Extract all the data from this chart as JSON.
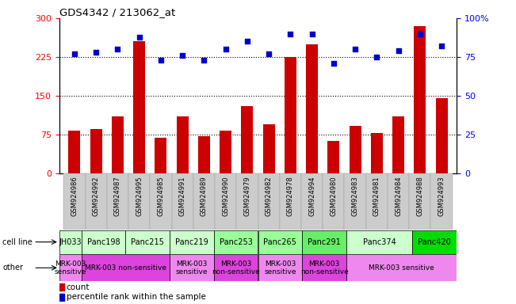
{
  "title": "GDS4342 / 213062_at",
  "samples": [
    "GSM924986",
    "GSM924992",
    "GSM924987",
    "GSM924995",
    "GSM924985",
    "GSM924991",
    "GSM924989",
    "GSM924990",
    "GSM924979",
    "GSM924982",
    "GSM924978",
    "GSM924994",
    "GSM924980",
    "GSM924983",
    "GSM924981",
    "GSM924984",
    "GSM924988",
    "GSM924993"
  ],
  "counts": [
    82,
    85,
    110,
    255,
    68,
    110,
    72,
    82,
    130,
    95,
    225,
    250,
    62,
    92,
    78,
    110,
    285,
    145
  ],
  "percentiles": [
    77,
    78,
    80,
    88,
    73,
    76,
    73,
    80,
    85,
    77,
    90,
    90,
    71,
    80,
    75,
    79,
    90,
    82
  ],
  "cell_lines": [
    {
      "label": "JH033",
      "start": 0,
      "end": 1,
      "color": "#ccffcc"
    },
    {
      "label": "Panc198",
      "start": 1,
      "end": 3,
      "color": "#ccffcc"
    },
    {
      "label": "Panc215",
      "start": 3,
      "end": 5,
      "color": "#ccffcc"
    },
    {
      "label": "Panc219",
      "start": 5,
      "end": 7,
      "color": "#ccffcc"
    },
    {
      "label": "Panc253",
      "start": 7,
      "end": 9,
      "color": "#99ff99"
    },
    {
      "label": "Panc265",
      "start": 9,
      "end": 11,
      "color": "#99ff99"
    },
    {
      "label": "Panc291",
      "start": 11,
      "end": 13,
      "color": "#66ee66"
    },
    {
      "label": "Panc374",
      "start": 13,
      "end": 16,
      "color": "#ccffcc"
    },
    {
      "label": "Panc420",
      "start": 16,
      "end": 18,
      "color": "#00dd00"
    }
  ],
  "other_groups": [
    {
      "label": "MRK-003\nsensitive",
      "start": 0,
      "end": 1,
      "color": "#ee88ee"
    },
    {
      "label": "MRK-003 non-sensitive",
      "start": 1,
      "end": 5,
      "color": "#dd44dd"
    },
    {
      "label": "MRK-003\nsensitive",
      "start": 5,
      "end": 7,
      "color": "#ee88ee"
    },
    {
      "label": "MRK-003\nnon-sensitive",
      "start": 7,
      "end": 9,
      "color": "#dd44dd"
    },
    {
      "label": "MRK-003\nsensitive",
      "start": 9,
      "end": 11,
      "color": "#ee88ee"
    },
    {
      "label": "MRK-003\nnon-sensitive",
      "start": 11,
      "end": 13,
      "color": "#dd44dd"
    },
    {
      "label": "MRK-003 sensitive",
      "start": 13,
      "end": 18,
      "color": "#ee88ee"
    }
  ],
  "bar_color": "#cc0000",
  "dot_color": "#0000cc",
  "left_ylim": [
    0,
    300
  ],
  "right_ylim": [
    0,
    100
  ],
  "left_yticks": [
    0,
    75,
    150,
    225,
    300
  ],
  "right_yticks": [
    0,
    25,
    50,
    75,
    100
  ],
  "sample_bg_color": "#cccccc",
  "background_color": "#ffffff"
}
